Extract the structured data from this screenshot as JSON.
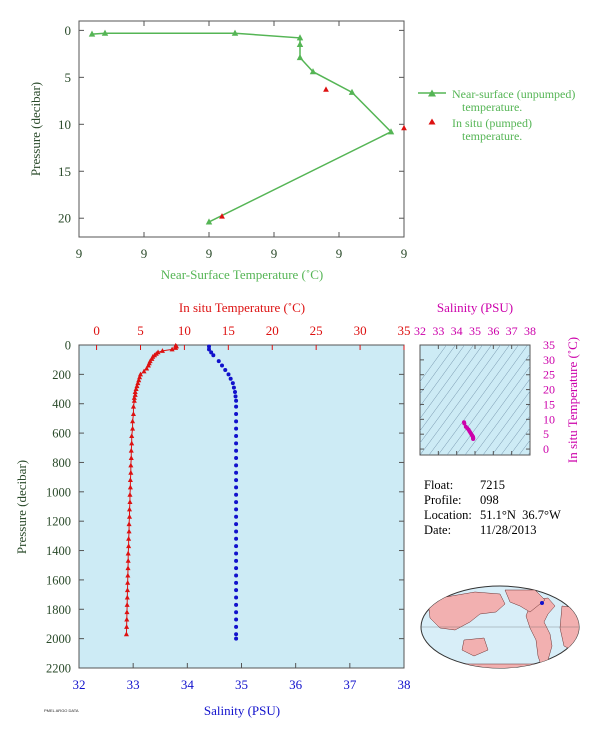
{
  "colors": {
    "near_surface": "#55b555",
    "temperature": "#dd1111",
    "salinity_profile": "#1111cc",
    "salinity_axis": "#cc00aa",
    "axis_text": "#2a4a2a",
    "plot_bg": "#cdebf5"
  },
  "float_info": {
    "float_label": "Float:",
    "float_value": "7215",
    "profile_label": "Profile:",
    "profile_value": "098",
    "location_label": "Location:",
    "location_value": "51.1°N  36.7°W",
    "date_label": "Date:",
    "date_value": "11/28/2013"
  },
  "footer_text": "PMEL ARGO DATA",
  "chart_data": [
    {
      "id": "near-surface",
      "type": "line",
      "xlabel": "Near-Surface Temperature (˚C)",
      "ylabel": "Pressure (decibar)",
      "x_tick_labels": [
        "9",
        "9",
        "9",
        "9",
        "9",
        "9"
      ],
      "x_tick_positions": [
        0,
        0.2,
        0.4,
        0.6,
        0.8,
        1.0
      ],
      "ylim": [
        22,
        -1
      ],
      "y_ticks": [
        0,
        5,
        10,
        15,
        20
      ],
      "legend_position": "right",
      "series": [
        {
          "name": "Near-surface (unpumped) temperature.",
          "marker": "triangle",
          "points": [
            {
              "x": 0.04,
              "y": 0.4
            },
            {
              "x": 0.08,
              "y": 0.3
            },
            {
              "x": 0.48,
              "y": 0.3
            },
            {
              "x": 0.68,
              "y": 0.8
            },
            {
              "x": 0.68,
              "y": 1.5
            },
            {
              "x": 0.68,
              "y": 2.9
            },
            {
              "x": 0.72,
              "y": 4.4
            },
            {
              "x": 0.84,
              "y": 6.6
            },
            {
              "x": 0.96,
              "y": 10.8
            },
            {
              "x": 0.4,
              "y": 20.4
            }
          ]
        },
        {
          "name": "In situ (pumped) temperature.",
          "marker": "triangle",
          "points": [
            {
              "x": 0.76,
              "y": 6.3
            },
            {
              "x": 1.0,
              "y": 10.4
            },
            {
              "x": 0.44,
              "y": 19.8
            }
          ]
        }
      ]
    },
    {
      "id": "profile",
      "type": "scatter",
      "xlabel": "Salinity (PSU)",
      "x2label": "In situ Temperature (˚C)",
      "ylabel": "Pressure (decibar)",
      "xlim": [
        32,
        38
      ],
      "x_ticks": [
        32,
        33,
        34,
        35,
        36,
        37,
        38
      ],
      "x2lim": [
        -2,
        35
      ],
      "x2_ticks": [
        0,
        5,
        10,
        15,
        20,
        25,
        30,
        35
      ],
      "ylim": [
        2200,
        0
      ],
      "y_ticks": [
        0,
        200,
        400,
        600,
        800,
        1000,
        1200,
        1400,
        1600,
        1800,
        2000,
        2200
      ],
      "series": [
        {
          "name": "In situ Temperature",
          "marker": "triangle",
          "points": [
            [
              9.0,
              5
            ],
            [
              9.1,
              10
            ],
            [
              9.0,
              20
            ],
            [
              8.6,
              30
            ],
            [
              7.5,
              40
            ],
            [
              7.0,
              50
            ],
            [
              6.8,
              60
            ],
            [
              6.6,
              70
            ],
            [
              6.4,
              80
            ],
            [
              6.3,
              95
            ],
            [
              6.1,
              110
            ],
            [
              6.0,
              125
            ],
            [
              5.9,
              140
            ],
            [
              5.7,
              160
            ],
            [
              5.4,
              180
            ],
            [
              5.0,
              200
            ],
            [
              4.9,
              220
            ],
            [
              4.8,
              240
            ],
            [
              4.7,
              260
            ],
            [
              4.6,
              280
            ],
            [
              4.5,
              300
            ],
            [
              4.4,
              320
            ],
            [
              4.4,
              340
            ],
            [
              4.3,
              360
            ],
            [
              4.3,
              380
            ],
            [
              4.2,
              420
            ],
            [
              4.2,
              470
            ],
            [
              4.1,
              520
            ],
            [
              4.1,
              570
            ],
            [
              4.0,
              620
            ],
            [
              4.0,
              670
            ],
            [
              3.95,
              720
            ],
            [
              3.95,
              770
            ],
            [
              3.9,
              820
            ],
            [
              3.9,
              870
            ],
            [
              3.85,
              920
            ],
            [
              3.85,
              970
            ],
            [
              3.8,
              1020
            ],
            [
              3.8,
              1070
            ],
            [
              3.75,
              1120
            ],
            [
              3.75,
              1170
            ],
            [
              3.7,
              1220
            ],
            [
              3.7,
              1270
            ],
            [
              3.65,
              1320
            ],
            [
              3.65,
              1370
            ],
            [
              3.6,
              1420
            ],
            [
              3.6,
              1470
            ],
            [
              3.58,
              1520
            ],
            [
              3.56,
              1570
            ],
            [
              3.54,
              1620
            ],
            [
              3.52,
              1670
            ],
            [
              3.5,
              1720
            ],
            [
              3.48,
              1770
            ],
            [
              3.46,
              1820
            ],
            [
              3.44,
              1870
            ],
            [
              3.42,
              1920
            ],
            [
              3.4,
              1970
            ]
          ]
        },
        {
          "name": "Salinity",
          "marker": "circle",
          "points": [
            [
              34.4,
              10
            ],
            [
              34.4,
              30
            ],
            [
              34.44,
              50
            ],
            [
              34.48,
              70
            ],
            [
              34.58,
              110
            ],
            [
              34.64,
              140
            ],
            [
              34.7,
              170
            ],
            [
              34.76,
              200
            ],
            [
              34.8,
              230
            ],
            [
              34.84,
              260
            ],
            [
              34.86,
              290
            ],
            [
              34.88,
              320
            ],
            [
              34.89,
              350
            ],
            [
              34.9,
              380
            ],
            [
              34.9,
              420
            ],
            [
              34.9,
              470
            ],
            [
              34.9,
              520
            ],
            [
              34.9,
              570
            ],
            [
              34.9,
              620
            ],
            [
              34.9,
              670
            ],
            [
              34.9,
              720
            ],
            [
              34.9,
              770
            ],
            [
              34.9,
              820
            ],
            [
              34.9,
              870
            ],
            [
              34.9,
              920
            ],
            [
              34.9,
              970
            ],
            [
              34.9,
              1020
            ],
            [
              34.9,
              1070
            ],
            [
              34.9,
              1120
            ],
            [
              34.9,
              1170
            ],
            [
              34.9,
              1220
            ],
            [
              34.9,
              1270
            ],
            [
              34.9,
              1320
            ],
            [
              34.9,
              1370
            ],
            [
              34.9,
              1420
            ],
            [
              34.9,
              1470
            ],
            [
              34.9,
              1520
            ],
            [
              34.9,
              1570
            ],
            [
              34.9,
              1620
            ],
            [
              34.9,
              1670
            ],
            [
              34.9,
              1720
            ],
            [
              34.9,
              1770
            ],
            [
              34.9,
              1820
            ],
            [
              34.9,
              1870
            ],
            [
              34.9,
              1920
            ],
            [
              34.9,
              1970
            ],
            [
              34.9,
              2000
            ]
          ]
        }
      ]
    },
    {
      "id": "ts-diagram",
      "type": "scatter",
      "xlabel": "Salinity (PSU)",
      "ylabel": "In situ Temperature (˚C)",
      "xlim": [
        32,
        38
      ],
      "x_ticks": [
        32,
        33,
        34,
        35,
        36,
        37,
        38
      ],
      "ylim": [
        -2,
        35
      ],
      "y_ticks": [
        0,
        5,
        10,
        15,
        20,
        25,
        30,
        35
      ],
      "series": [
        {
          "name": "T-S",
          "marker": "circle",
          "points": [
            [
              34.4,
              9.0
            ],
            [
              34.42,
              8.6
            ],
            [
              34.5,
              7.5
            ],
            [
              34.58,
              7.0
            ],
            [
              34.65,
              6.5
            ],
            [
              34.7,
              6.0
            ],
            [
              34.75,
              5.5
            ],
            [
              34.8,
              5.0
            ],
            [
              34.84,
              4.6
            ],
            [
              34.87,
              4.3
            ],
            [
              34.89,
              4.1
            ],
            [
              34.9,
              3.9
            ],
            [
              34.9,
              3.7
            ],
            [
              34.9,
              3.5
            ],
            [
              34.9,
              3.4
            ]
          ]
        }
      ]
    }
  ]
}
